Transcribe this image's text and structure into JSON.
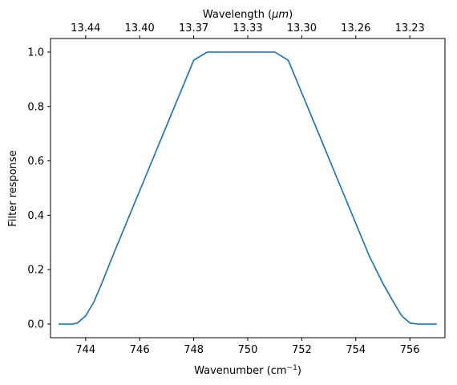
{
  "chart_data": {
    "type": "line",
    "xlabel": "Wavenumber (cm",
    "xlabel_sup": "−1",
    "xlabel_tail": ")",
    "ylabel": "Filter response",
    "top_axis_label": "Wavelength (",
    "top_axis_label_unit": "μm",
    "top_axis_label_tail": ")",
    "xlim": [
      742.7,
      757.3
    ],
    "ylim": [
      -0.05,
      1.05
    ],
    "x_ticks": [
      744,
      746,
      748,
      750,
      752,
      754,
      756
    ],
    "x_tick_labels": [
      "744",
      "746",
      "748",
      "750",
      "752",
      "754",
      "756"
    ],
    "y_ticks": [
      0,
      0.2,
      0.4,
      0.6,
      0.8,
      1.0
    ],
    "y_tick_labels": [
      "0.0",
      "0.2",
      "0.4",
      "0.6",
      "0.8",
      "1.0"
    ],
    "top_ticks_x": [
      744,
      746,
      748,
      750,
      752,
      754,
      756
    ],
    "top_tick_labels": [
      "13.44",
      "13.40",
      "13.37",
      "13.33",
      "13.30",
      "13.26",
      "13.23"
    ],
    "line_color": "#1f77b4",
    "grid": false,
    "series": [
      {
        "x": [
          743.0,
          743.5,
          743.7,
          744.0,
          744.3,
          744.6,
          745.0,
          745.5,
          746.0,
          746.5,
          747.0,
          747.5,
          748.0,
          748.5,
          749.0,
          749.4,
          749.7,
          750.0,
          750.3,
          750.6,
          751.0,
          751.5,
          752.0,
          752.5,
          753.0,
          753.5,
          754.0,
          754.5,
          755.0,
          755.4,
          755.7,
          756.0,
          756.3,
          756.5,
          757.0
        ],
        "y": [
          0.0,
          0.0,
          0.004,
          0.03,
          0.08,
          0.15,
          0.25,
          0.37,
          0.49,
          0.61,
          0.73,
          0.85,
          0.97,
          1.0,
          1.0,
          1.0,
          1.0,
          1.0,
          1.0,
          1.0,
          1.0,
          0.97,
          0.85,
          0.73,
          0.61,
          0.49,
          0.37,
          0.25,
          0.15,
          0.08,
          0.03,
          0.004,
          0.0,
          0.0,
          0.0
        ]
      }
    ]
  }
}
